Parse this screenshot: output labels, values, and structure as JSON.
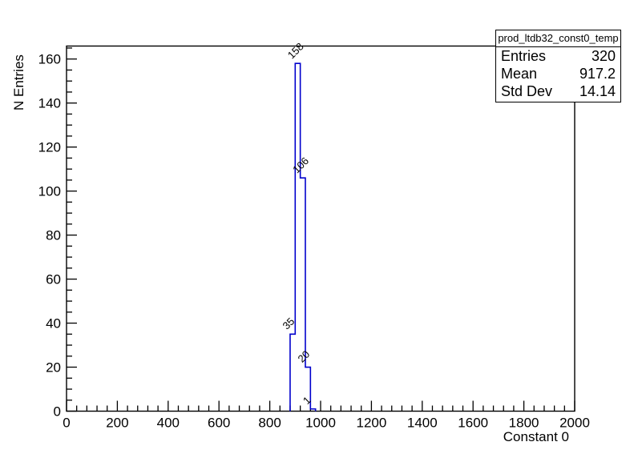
{
  "window": {
    "background": "#ffffff"
  },
  "chart_data": {
    "type": "histogram",
    "title": "prod_ltdb32_const0_temp",
    "xlabel": "Constant 0",
    "ylabel": "N Entries",
    "xlim": [
      0,
      2000
    ],
    "ylim": [
      0,
      165.9
    ],
    "x_major_step": 200,
    "x_minor_step": 40,
    "y_major_step": 20,
    "y_minor_step": 5,
    "x_major_ticks": [
      0,
      200,
      400,
      600,
      800,
      1000,
      1200,
      1400,
      1600,
      1800,
      2000
    ],
    "y_major_ticks": [
      0,
      20,
      40,
      60,
      80,
      100,
      120,
      140,
      160
    ],
    "bin_width": 20,
    "bins": [
      {
        "x_low": 880,
        "x_high": 900,
        "count": 35,
        "label": "35"
      },
      {
        "x_low": 900,
        "x_high": 920,
        "count": 158,
        "label": "158"
      },
      {
        "x_low": 920,
        "x_high": 940,
        "count": 106,
        "label": "106"
      },
      {
        "x_low": 940,
        "x_high": 960,
        "count": 20,
        "label": "20"
      },
      {
        "x_low": 960,
        "x_high": 980,
        "count": 1,
        "label": "1"
      }
    ],
    "line_color": "#0000cc",
    "axis_color": "#000000",
    "grid": false,
    "legend_position": "none"
  },
  "stats_box": {
    "title": "prod_ltdb32_const0_temp",
    "rows": [
      {
        "label": "Entries",
        "value": "320"
      },
      {
        "label": "Mean",
        "value": "917.2"
      },
      {
        "label": "Std Dev",
        "value": "14.14"
      }
    ]
  }
}
